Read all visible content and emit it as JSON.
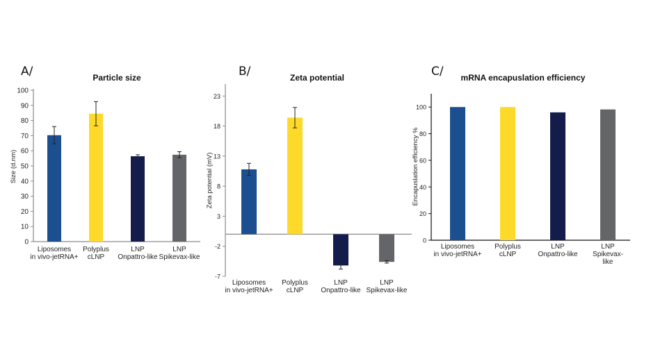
{
  "colors": {
    "liposomes": "#1C4F8F",
    "polyplus": "#FDD92A",
    "onpattro": "#141C4C",
    "spikevax": "#646569",
    "axis_gray": "#888888",
    "axis_black": "#111111",
    "error_bar": "#222222"
  },
  "chart_data": [
    {
      "id": "A",
      "panel_label": "A/",
      "type": "bar",
      "title": "Particle size",
      "xlabel": "",
      "ylabel": "Size (d.nm)",
      "ylim": [
        0,
        100
      ],
      "yticks": [
        0,
        10,
        20,
        30,
        40,
        50,
        60,
        70,
        80,
        90,
        100
      ],
      "grid": false,
      "legend": "none",
      "categories": [
        [
          "Liposomes",
          "in vivo-jetRNA+"
        ],
        [
          "Polyplus",
          "cLNP"
        ],
        [
          "LNP",
          "Onpattro-like"
        ],
        [
          "LNP",
          "Spikevax-like"
        ]
      ],
      "values": [
        70.3,
        84.5,
        56.4,
        57.4
      ],
      "errors": [
        5.7,
        8.0,
        1.0,
        2.0
      ],
      "bar_colors": [
        "liposomes",
        "polyplus",
        "onpattro",
        "spikevax"
      ]
    },
    {
      "id": "B",
      "panel_label": "B/",
      "type": "bar",
      "title": "Zeta potential",
      "xlabel": "",
      "ylabel": "Zeta potential (mV)",
      "ylim": [
        -7,
        25
      ],
      "yticks": [
        -7,
        -2,
        3,
        8,
        13,
        18,
        23
      ],
      "grid": false,
      "legend": "none",
      "categories": [
        [
          "Liposomes",
          "in vivo-jetRNA+"
        ],
        [
          "Polyplus",
          "cLNP"
        ],
        [
          "LNP",
          "Onpattro-like"
        ],
        [
          "LNP",
          "Spikevax-like"
        ]
      ],
      "values": [
        10.8,
        19.4,
        -5.2,
        -4.6
      ],
      "errors": [
        1.0,
        1.7,
        0.6,
        0.2
      ],
      "bar_colors": [
        "liposomes",
        "polyplus",
        "onpattro",
        "spikevax"
      ]
    },
    {
      "id": "C",
      "panel_label": "C/",
      "type": "bar",
      "title": "mRNA encapuslation efficiency",
      "xlabel": "",
      "ylabel": "Encapuslation efficiency %",
      "ylim": [
        0,
        110
      ],
      "yticks": [
        0,
        20,
        40,
        60,
        80,
        100
      ],
      "grid": false,
      "legend": "none",
      "categories": [
        [
          "Liposomes",
          "in vivo-jetRNA+"
        ],
        [
          "Polyplus",
          "cLNP"
        ],
        [
          "LNP",
          "Onpattro-like"
        ],
        [
          "LNP",
          "Spikevax-",
          "like"
        ]
      ],
      "values": [
        100,
        100,
        96,
        98.2
      ],
      "errors": null,
      "bar_colors": [
        "liposomes",
        "polyplus",
        "onpattro",
        "spikevax"
      ]
    }
  ]
}
